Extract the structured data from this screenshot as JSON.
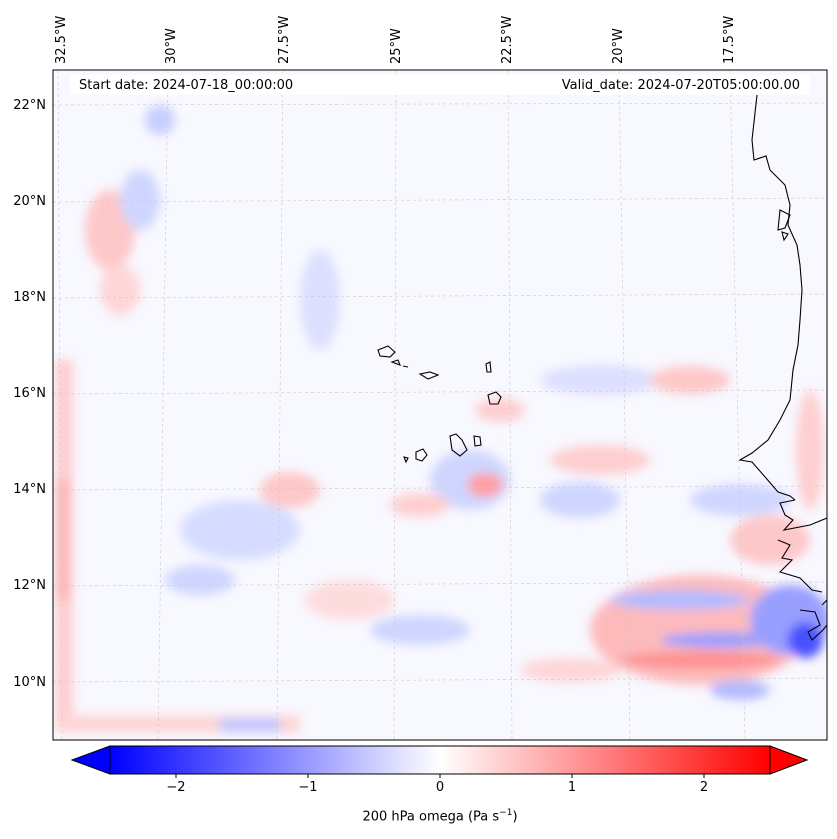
{
  "header": {
    "start_date": "Start date: 2024-07-18_00:00:00",
    "valid_date": "Valid_date: 2024-07-20T05:00:00.00"
  },
  "map": {
    "longitude_labels": [
      "32.5°W",
      "30°W",
      "27.5°W",
      "25°W",
      "22.5°W",
      "20°W",
      "17.5°W"
    ],
    "latitude_labels": [
      "22°N",
      "20°N",
      "18°N",
      "16°N",
      "14°N",
      "12°N",
      "10°N"
    ],
    "field": "200 hPa omega",
    "colors": {
      "negative": "#0000ff",
      "neutral": "#ffffff",
      "positive": "#ff0000",
      "coastline": "#000000"
    }
  },
  "colorbar": {
    "ticks": [
      "−2",
      "−1",
      "0",
      "1",
      "2"
    ],
    "tick_values": [
      -2,
      -1,
      0,
      1,
      2
    ],
    "range": [
      -2.5,
      2.5
    ],
    "label": "200 hPa omega (Pa s",
    "label_exponent": "−1",
    "label_close": ")"
  }
}
